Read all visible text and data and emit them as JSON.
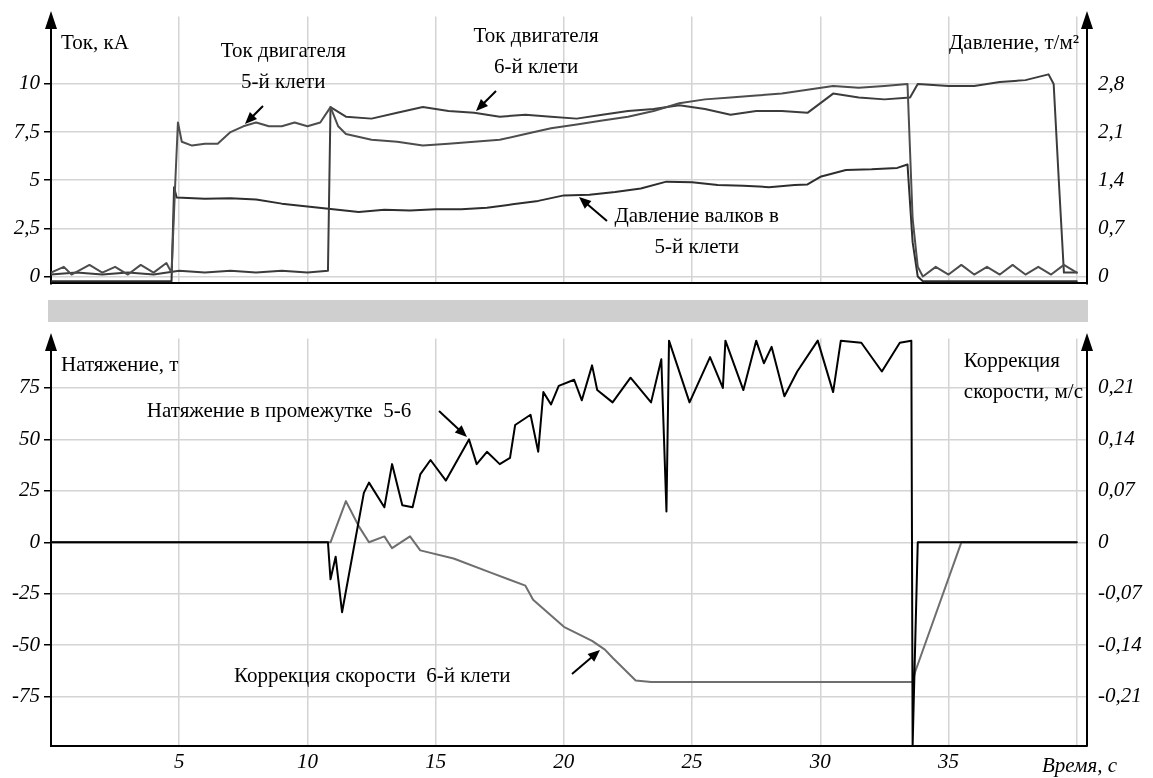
{
  "chart_data": [
    {
      "type": "line",
      "ylabel": "Ток, кА",
      "y2label": "Давление, т/м²",
      "grid": true,
      "marker": "none",
      "tick_labels": "y",
      "xlim": [
        0,
        40.4
      ],
      "xticks": [
        5,
        10,
        15,
        20,
        25,
        30,
        35,
        {
          "value": 40,
          "label": null
        }
      ],
      "ylim": [
        -0.36,
        13.5
      ],
      "yticks": [
        0,
        {
          "value": 2.5,
          "label": "2,5"
        },
        5,
        {
          "value": 7.5,
          "label": "7,5"
        },
        10
      ],
      "y2lim": [
        -0.1,
        3.78
      ],
      "y2ticks": [
        0,
        {
          "value": 0.7,
          "label": "0,7"
        },
        {
          "value": 1.4,
          "label": "1,4"
        },
        {
          "value": 2.1,
          "label": "2,1"
        },
        {
          "value": 2.8,
          "label": "2,8"
        }
      ],
      "series": [
        {
          "name": "Ток двигателя 5-й клети",
          "color": "#4d4d4d",
          "x": [
            0,
            0.5,
            0.8,
            1.5,
            2,
            2.5,
            3,
            3.5,
            4,
            4.5,
            4.7,
            4.85,
            4.95,
            5.1,
            5.5,
            6,
            6.5,
            7,
            7.5,
            8,
            8.5,
            9,
            9.5,
            10,
            10.5,
            10.9,
            11.2,
            11.5,
            12.5,
            13.5,
            14.5,
            15.5,
            16.5,
            17.5,
            18.5,
            19.5,
            20.5,
            21.5,
            22.5,
            23.5,
            24.5,
            25.5,
            26.5,
            27.5,
            28.5,
            29.5,
            30.5,
            31.5,
            32.5,
            33.4,
            33.6,
            33.8,
            34,
            34.5,
            35,
            35.5,
            36,
            36.5,
            37,
            37.5,
            38,
            38.5,
            39,
            39.5,
            40
          ],
          "values": [
            0.2,
            0.5,
            0.1,
            0.6,
            0.2,
            0.5,
            0.1,
            0.6,
            0.2,
            0.7,
            0.2,
            5,
            8,
            7,
            6.8,
            6.9,
            6.9,
            7.5,
            7.8,
            8,
            7.8,
            7.8,
            8,
            7.8,
            8,
            8.8,
            7.8,
            7.4,
            7.1,
            7,
            6.8,
            6.9,
            7,
            7.1,
            7.4,
            7.7,
            7.9,
            8.1,
            8.3,
            8.6,
            9,
            9.2,
            9.3,
            9.4,
            9.5,
            9.7,
            9.9,
            9.8,
            9.9,
            10,
            3,
            0.5,
            0,
            0.5,
            0.1,
            0.6,
            0.1,
            0.5,
            0.1,
            0.6,
            0.1,
            0.5,
            0.1,
            0.6,
            0.2
          ]
        },
        {
          "name": "Ток двигателя 6-й клети",
          "color": "#3c3c3c",
          "x": [
            0,
            1,
            2,
            3,
            4,
            5,
            6,
            7,
            8,
            9,
            10,
            10.8,
            10.9,
            11.5,
            12.5,
            13.5,
            14.5,
            15.5,
            16.5,
            17.5,
            18.5,
            19.5,
            20.5,
            21.5,
            22.5,
            23.5,
            24.5,
            25.5,
            26.5,
            27.5,
            28.5,
            29.5,
            30.5,
            31.5,
            32.5,
            33.5,
            33.8,
            35,
            36,
            37,
            38,
            38.9,
            39.1,
            39.3,
            39.5,
            40
          ],
          "values": [
            0.1,
            0.2,
            0.1,
            0.2,
            0.1,
            0.3,
            0.2,
            0.3,
            0.2,
            0.3,
            0.2,
            0.3,
            8.8,
            8.3,
            8.2,
            8.5,
            8.8,
            8.6,
            8.5,
            8.3,
            8.4,
            8.3,
            8.2,
            8.4,
            8.6,
            8.7,
            8.9,
            8.7,
            8.4,
            8.6,
            8.6,
            8.5,
            9.5,
            9.3,
            9.2,
            9.3,
            10,
            9.9,
            9.9,
            10.1,
            10.2,
            10.5,
            10,
            5,
            0.2,
            0.2
          ]
        },
        {
          "name": "Давление валков в 5-й клети",
          "color": "#2e2e2e",
          "axis": "y2",
          "x": [
            0,
            4.7,
            4.8,
            4.9,
            6,
            7,
            8,
            9,
            10,
            11,
            12,
            13,
            14,
            15,
            16,
            17,
            18,
            19,
            20,
            21,
            22,
            23,
            24,
            25,
            26,
            27,
            28,
            29,
            29.5,
            30,
            31,
            32,
            33,
            33.4,
            33.6,
            33.8,
            34,
            40
          ],
          "values": [
            -0.07,
            -0.07,
            1.3,
            1.15,
            1.13,
            1.14,
            1.12,
            1.06,
            1.02,
            0.98,
            0.94,
            0.97,
            0.96,
            0.98,
            0.98,
            1,
            1.05,
            1.1,
            1.18,
            1.19,
            1.23,
            1.28,
            1.38,
            1.37,
            1.33,
            1.32,
            1.3,
            1.33,
            1.34,
            1.45,
            1.55,
            1.56,
            1.58,
            1.63,
            0.5,
            0,
            -0.07,
            -0.07
          ]
        }
      ]
    },
    {
      "type": "line",
      "ylabel": "Натяжение, т",
      "y2label": "Коррекция скорости, м/с",
      "xlabel": "Время, с",
      "grid": true,
      "marker": "none",
      "xlim": [
        0,
        40.4
      ],
      "xticks": [
        5,
        10,
        15,
        20,
        25,
        30,
        35,
        {
          "value": 40,
          "label": null
        }
      ],
      "ylim": [
        -99,
        99
      ],
      "yticks": [
        -75,
        -50,
        -25,
        0,
        25,
        50,
        75
      ],
      "y2lim": [
        -0.277,
        0.277
      ],
      "y2ticks": [
        {
          "value": -0.21,
          "label": "-0,21"
        },
        {
          "value": -0.14,
          "label": "-0,14"
        },
        {
          "value": -0.07,
          "label": "-0,07"
        },
        0,
        {
          "value": 0.07,
          "label": "0,07"
        },
        {
          "value": 0.14,
          "label": "0,14"
        },
        {
          "value": 0.21,
          "label": "0,21"
        }
      ],
      "series": [
        {
          "name": "Натяжение в промежутке  5-6",
          "color": "#000000",
          "x": [
            0,
            10.8,
            10.9,
            11.1,
            11.35,
            12.2,
            12.4,
            13,
            13.3,
            13.7,
            14.1,
            14.4,
            14.8,
            15.4,
            16.3,
            16.6,
            17,
            17.5,
            17.9,
            18.1,
            18.7,
            19,
            19.2,
            19.5,
            19.8,
            20.4,
            20.7,
            21.1,
            21.3,
            21.9,
            22.6,
            23.4,
            23.8,
            24,
            24.1,
            24.9,
            25.7,
            26.2,
            26.3,
            27,
            27.5,
            27.8,
            28.1,
            28.6,
            29.1,
            29.9,
            30.5,
            30.8,
            31.6,
            32.4,
            33.1,
            33.55,
            33.6,
            33.8,
            40
          ],
          "values": [
            0,
            0,
            -18,
            -7,
            -34,
            24,
            29,
            17,
            38,
            18,
            17,
            33,
            40,
            30,
            50,
            38,
            44,
            38,
            41,
            57,
            62,
            44,
            73,
            67,
            76,
            79,
            69,
            86,
            74,
            68,
            80,
            68,
            89,
            15,
            98,
            68,
            90,
            75,
            98,
            74,
            98,
            87,
            95,
            71,
            83,
            98,
            73,
            98,
            97,
            83,
            97,
            98,
            -99,
            0,
            0
          ]
        },
        {
          "name": "Коррекция скорости  6-й клети",
          "color": "#6e6e6e",
          "axis": "y2",
          "x": [
            0,
            10.9,
            11.5,
            12,
            12.4,
            13,
            13.3,
            14,
            14.4,
            15.7,
            17.2,
            18.5,
            18.8,
            20,
            21.1,
            21.6,
            21.9,
            22.8,
            23.4,
            33.6,
            33.7,
            35.5,
            40
          ],
          "values": [
            0,
            0,
            0.056,
            0.022,
            0,
            0.008,
            -0.008,
            0.008,
            -0.011,
            -0.022,
            -0.042,
            -0.059,
            -0.078,
            -0.115,
            -0.134,
            -0.146,
            -0.157,
            -0.188,
            -0.19,
            -0.19,
            -0.176,
            0,
            0
          ]
        }
      ]
    }
  ]
}
